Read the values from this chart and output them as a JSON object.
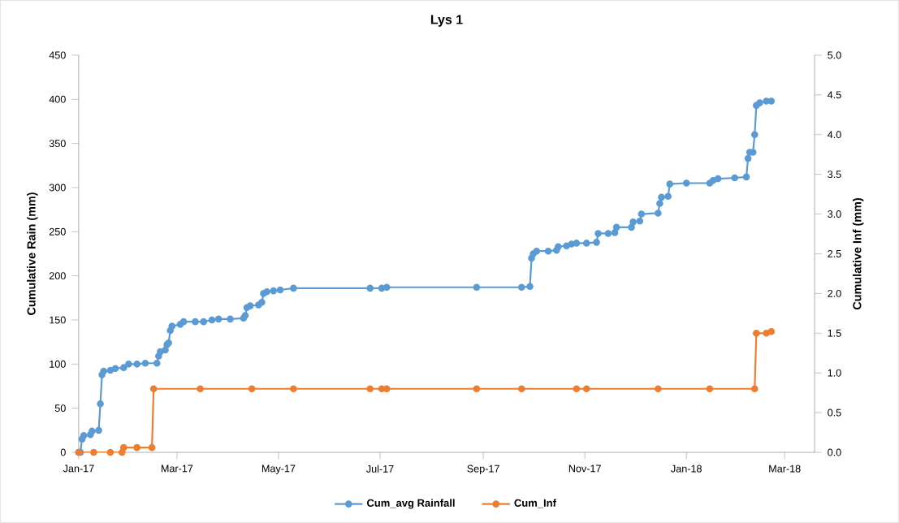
{
  "chart_data": {
    "type": "line",
    "title": "Lys 1",
    "ylabel": "Cumulative Rain (mm)",
    "y2label": "Cumulative Inf (mm)",
    "xlim": [
      "2017-01-01",
      "2018-03-19"
    ],
    "xticks": [
      {
        "value": "2017-01-01",
        "label": "Jan-17"
      },
      {
        "value": "2017-03-01",
        "label": "Mar-17"
      },
      {
        "value": "2017-05-01",
        "label": "May-17"
      },
      {
        "value": "2017-07-01",
        "label": "Jul-17"
      },
      {
        "value": "2017-09-01",
        "label": "Sep-17"
      },
      {
        "value": "2017-11-01",
        "label": "Nov-17"
      },
      {
        "value": "2018-01-01",
        "label": "Jan-18"
      },
      {
        "value": "2018-03-01",
        "label": "Mar-18"
      }
    ],
    "ylim": [
      0,
      450
    ],
    "yticks": [
      0,
      50,
      100,
      150,
      200,
      250,
      300,
      350,
      400,
      450
    ],
    "y2lim": [
      0,
      5
    ],
    "y2ticks": [
      {
        "value": 0,
        "label": "0.0"
      },
      {
        "value": 0.5,
        "label": "0.5"
      },
      {
        "value": 1,
        "label": "1.0"
      },
      {
        "value": 1.5,
        "label": "1.5"
      },
      {
        "value": 2,
        "label": "2.0"
      },
      {
        "value": 2.5,
        "label": "2.5"
      },
      {
        "value": 3,
        "label": "3.0"
      },
      {
        "value": 3.5,
        "label": "3.5"
      },
      {
        "value": 4,
        "label": "4.0"
      },
      {
        "value": 4.5,
        "label": "4.5"
      },
      {
        "value": 5,
        "label": "5.0"
      }
    ],
    "legend": "bottom",
    "marker": "circle",
    "line_style": "solid",
    "series": [
      {
        "name": "Cum_avg Rainfall",
        "color": "#5b9bd5",
        "x": [
          "2017-01-01",
          "2017-01-02",
          "2017-01-03",
          "2017-01-04",
          "2017-01-08",
          "2017-01-09",
          "2017-01-13",
          "2017-01-14",
          "2017-01-15",
          "2017-01-16",
          "2017-01-20",
          "2017-01-23",
          "2017-01-28",
          "2017-01-31",
          "2017-02-05",
          "2017-02-10",
          "2017-02-17",
          "2017-02-18",
          "2017-02-19",
          "2017-02-22",
          "2017-02-23",
          "2017-02-24",
          "2017-02-25",
          "2017-02-26",
          "2017-03-03",
          "2017-03-05",
          "2017-03-12",
          "2017-03-17",
          "2017-03-22",
          "2017-03-26",
          "2017-04-02",
          "2017-04-10",
          "2017-04-11",
          "2017-04-12",
          "2017-04-14",
          "2017-04-19",
          "2017-04-21",
          "2017-04-22",
          "2017-04-24",
          "2017-04-28",
          "2017-05-02",
          "2017-05-10",
          "2017-06-25",
          "2017-07-02",
          "2017-07-05",
          "2017-08-28",
          "2017-09-24",
          "2017-09-29",
          "2017-09-30",
          "2017-10-01",
          "2017-10-03",
          "2017-10-10",
          "2017-10-15",
          "2017-10-16",
          "2017-10-21",
          "2017-10-24",
          "2017-10-27",
          "2017-11-02",
          "2017-11-08",
          "2017-11-09",
          "2017-11-15",
          "2017-11-19",
          "2017-11-20",
          "2017-11-29",
          "2017-11-30",
          "2017-12-04",
          "2017-12-05",
          "2017-12-15",
          "2017-12-16",
          "2017-12-17",
          "2017-12-21",
          "2017-12-22",
          "2018-01-01",
          "2018-01-15",
          "2018-01-17",
          "2018-01-20",
          "2018-01-30",
          "2018-02-06",
          "2018-02-07",
          "2018-02-08",
          "2018-02-10",
          "2018-02-11",
          "2018-02-12",
          "2018-02-14",
          "2018-02-18",
          "2018-02-21"
        ],
        "values": [
          0,
          0,
          15,
          19,
          20,
          24,
          25,
          55,
          88,
          92,
          93,
          95,
          96,
          100,
          100,
          101,
          101,
          109,
          114,
          116,
          122,
          124,
          138,
          143,
          145,
          148,
          148,
          148,
          150,
          151,
          151,
          152,
          155,
          164,
          166,
          167,
          170,
          180,
          182,
          183,
          184,
          186,
          186,
          186,
          187,
          187,
          187,
          188,
          220,
          225,
          228,
          228,
          229,
          233,
          234,
          236,
          237,
          237,
          238,
          248,
          248,
          249,
          255,
          255,
          261,
          262,
          270,
          271,
          282,
          289,
          290,
          304,
          305,
          305,
          308,
          310,
          311,
          312,
          333,
          340,
          340,
          360,
          393,
          396,
          398,
          398
        ]
      },
      {
        "name": "Cum_Inf",
        "color": "#ed7d31",
        "axis": "y2",
        "x": [
          "2017-01-01",
          "2017-01-10",
          "2017-01-20",
          "2017-01-27",
          "2017-01-28",
          "2017-02-05",
          "2017-02-14",
          "2017-02-15",
          "2017-03-15",
          "2017-04-15",
          "2017-05-10",
          "2017-06-25",
          "2017-07-02",
          "2017-07-05",
          "2017-08-28",
          "2017-09-24",
          "2017-10-27",
          "2017-11-02",
          "2017-12-15",
          "2018-01-15",
          "2018-02-11",
          "2018-02-12",
          "2018-02-18",
          "2018-02-21"
        ],
        "values": [
          0,
          0,
          0,
          0,
          0.06,
          0.06,
          0.06,
          0.8,
          0.8,
          0.8,
          0.8,
          0.8,
          0.8,
          0.8,
          0.8,
          0.8,
          0.8,
          0.8,
          0.8,
          0.8,
          0.8,
          1.5,
          1.5,
          1.52
        ]
      }
    ]
  }
}
